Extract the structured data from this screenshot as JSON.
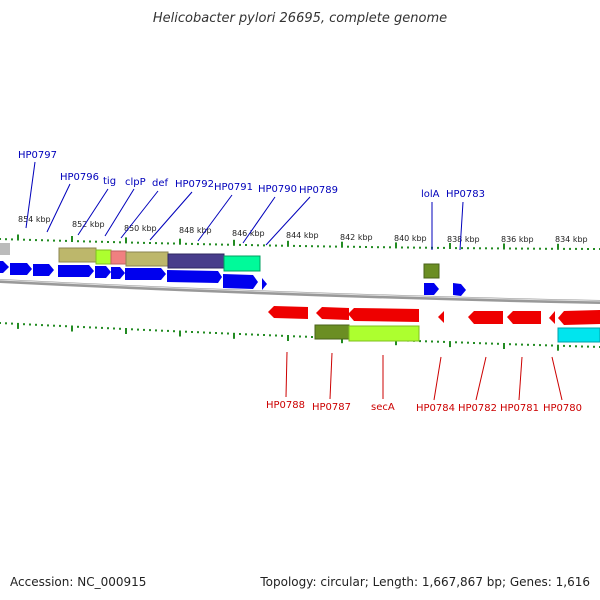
{
  "title": "Helicobacter pylori 26695, complete genome",
  "footer": {
    "accession": "Accession: NC_000915",
    "stats": "Topology: circular; Length: 1,667,867 bp; Genes: 1,616"
  },
  "colors": {
    "forward_gene": "#0000ee",
    "reverse_gene": "#ee0000",
    "forward_label": "#0000bb",
    "reverse_label": "#cc0000",
    "tick": "#228b22",
    "backbone": "#888888"
  },
  "ticks": [
    "854 kbp",
    "852 kbp",
    "850 kbp",
    "848 kbp",
    "846 kbp",
    "844 kbp",
    "842 kbp",
    "840 kbp",
    "838 kbp",
    "836 kbp",
    "834 kbp"
  ],
  "forward_labels": [
    "HP0797",
    "HP0796",
    "tig",
    "clpP",
    "def",
    "HP0792",
    "HP0791",
    "HP0790",
    "HP0789",
    "lolA",
    "HP0783"
  ],
  "reverse_labels": [
    "HP0788",
    "HP0787",
    "secA",
    "HP0784",
    "HP0782",
    "HP0781",
    "HP0780"
  ]
}
